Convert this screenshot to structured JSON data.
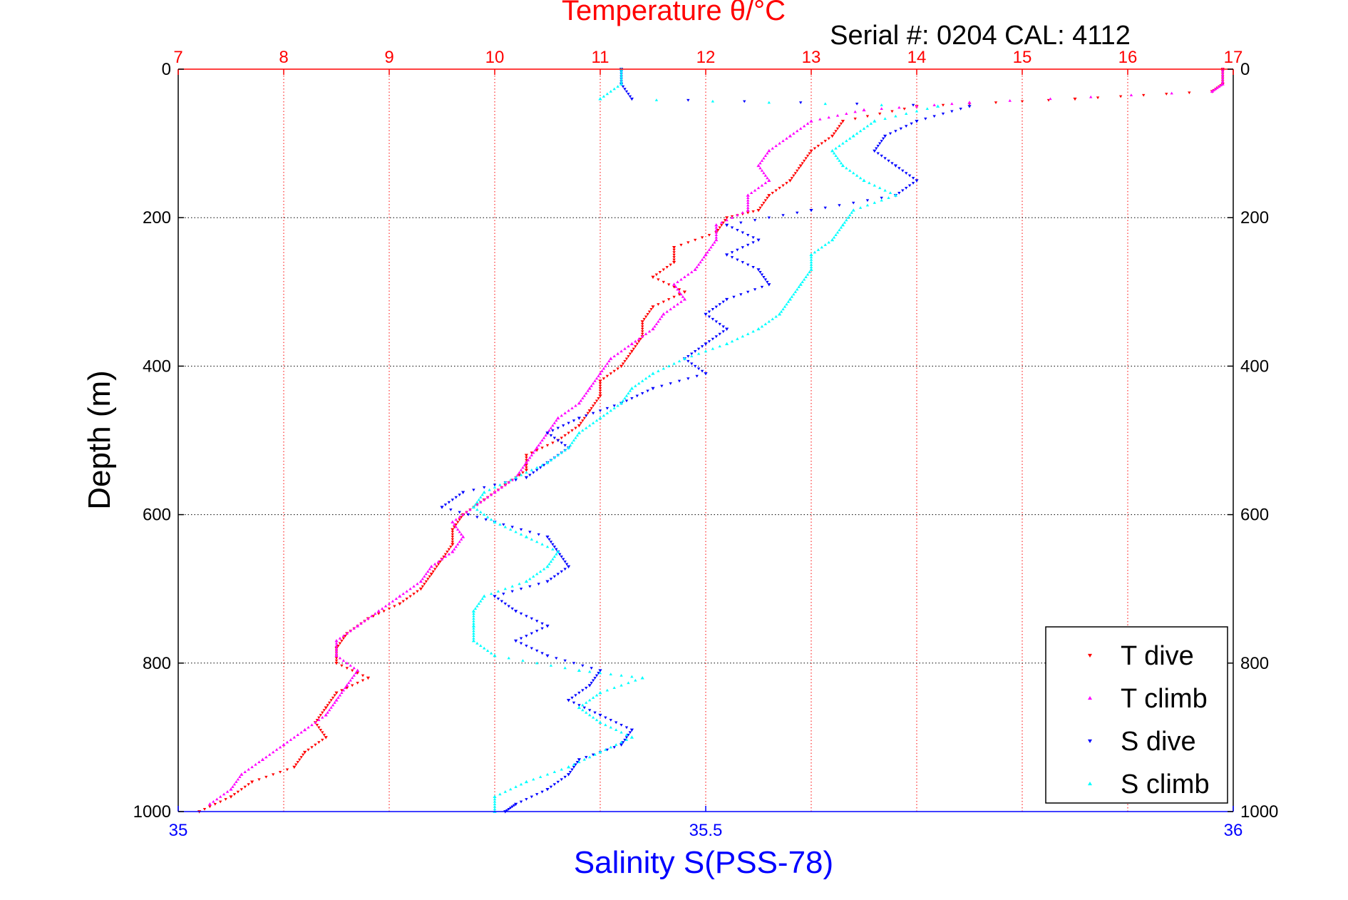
{
  "chart_data": {
    "type": "scatter",
    "title": "Temperature θ/°C",
    "subtitle": "Serial #: 0204  CAL: 4112",
    "ylabel": "Depth (m)",
    "xlabel_bottom": "Salinity S(PSS-78)",
    "ylim": [
      1000,
      0
    ],
    "yticks": [
      0,
      200,
      400,
      600,
      800,
      1000
    ],
    "x_top": {
      "label": "Temperature θ/°C",
      "lim": [
        7,
        17
      ],
      "ticks": [
        7,
        8,
        9,
        10,
        11,
        12,
        13,
        14,
        15,
        16,
        17
      ]
    },
    "x_bottom": {
      "label": "Salinity S(PSS-78)",
      "lim": [
        35,
        36
      ],
      "ticks": [
        35,
        35.5,
        36
      ]
    },
    "grid": true,
    "legend_position": "bottom-right",
    "series": [
      {
        "name": "T dive",
        "axis": "top",
        "color": "#ff0000",
        "marker": "triangle-down",
        "points": [
          [
            16.9,
            0
          ],
          [
            16.9,
            20
          ],
          [
            16.8,
            30
          ],
          [
            15.5,
            40
          ],
          [
            14,
            50
          ],
          [
            13.3,
            70
          ],
          [
            13.2,
            90
          ],
          [
            13,
            110
          ],
          [
            12.9,
            130
          ],
          [
            12.8,
            150
          ],
          [
            12.6,
            170
          ],
          [
            12.5,
            190
          ],
          [
            12.2,
            200
          ],
          [
            12.1,
            220
          ],
          [
            11.7,
            240
          ],
          [
            11.7,
            260
          ],
          [
            11.5,
            280
          ],
          [
            11.8,
            300
          ],
          [
            11.5,
            320
          ],
          [
            11.4,
            340
          ],
          [
            11.4,
            360
          ],
          [
            11.3,
            380
          ],
          [
            11.2,
            400
          ],
          [
            11,
            420
          ],
          [
            11,
            440
          ],
          [
            10.9,
            460
          ],
          [
            10.8,
            480
          ],
          [
            10.6,
            500
          ],
          [
            10.3,
            520
          ],
          [
            10.3,
            540
          ],
          [
            10.1,
            560
          ],
          [
            9.9,
            580
          ],
          [
            9.7,
            600
          ],
          [
            9.6,
            620
          ],
          [
            9.6,
            640
          ],
          [
            9.5,
            660
          ],
          [
            9.4,
            680
          ],
          [
            9.3,
            700
          ],
          [
            9.1,
            720
          ],
          [
            8.8,
            740
          ],
          [
            8.6,
            760
          ],
          [
            8.5,
            780
          ],
          [
            8.5,
            800
          ],
          [
            8.8,
            820
          ],
          [
            8.5,
            840
          ],
          [
            8.4,
            860
          ],
          [
            8.3,
            880
          ],
          [
            8.4,
            900
          ],
          [
            8.2,
            920
          ],
          [
            8.1,
            940
          ],
          [
            7.7,
            960
          ],
          [
            7.5,
            980
          ],
          [
            7.2,
            1000
          ]
        ]
      },
      {
        "name": "T climb",
        "axis": "top",
        "color": "#ff00ff",
        "marker": "triangle-up",
        "points": [
          [
            16.9,
            0
          ],
          [
            16.9,
            20
          ],
          [
            16.8,
            30
          ],
          [
            14.5,
            45
          ],
          [
            13.5,
            55
          ],
          [
            13,
            70
          ],
          [
            12.8,
            90
          ],
          [
            12.6,
            110
          ],
          [
            12.5,
            130
          ],
          [
            12.6,
            150
          ],
          [
            12.4,
            170
          ],
          [
            12.4,
            190
          ],
          [
            12.1,
            210
          ],
          [
            12.1,
            230
          ],
          [
            12,
            250
          ],
          [
            11.9,
            270
          ],
          [
            11.7,
            290
          ],
          [
            11.8,
            310
          ],
          [
            11.6,
            330
          ],
          [
            11.5,
            350
          ],
          [
            11.3,
            370
          ],
          [
            11.1,
            390
          ],
          [
            11,
            410
          ],
          [
            10.9,
            430
          ],
          [
            10.8,
            450
          ],
          [
            10.6,
            470
          ],
          [
            10.5,
            490
          ],
          [
            10.4,
            510
          ],
          [
            10.3,
            530
          ],
          [
            10.2,
            550
          ],
          [
            10,
            570
          ],
          [
            9.8,
            590
          ],
          [
            9.6,
            610
          ],
          [
            9.7,
            630
          ],
          [
            9.6,
            650
          ],
          [
            9.4,
            670
          ],
          [
            9.3,
            690
          ],
          [
            9.1,
            710
          ],
          [
            8.9,
            730
          ],
          [
            8.7,
            750
          ],
          [
            8.5,
            770
          ],
          [
            8.5,
            790
          ],
          [
            8.7,
            810
          ],
          [
            8.6,
            830
          ],
          [
            8.5,
            850
          ],
          [
            8.4,
            870
          ],
          [
            8.2,
            890
          ],
          [
            8,
            910
          ],
          [
            7.8,
            930
          ],
          [
            7.6,
            950
          ],
          [
            7.5,
            970
          ],
          [
            7.3,
            990
          ]
        ]
      },
      {
        "name": "S dive",
        "axis": "bottom",
        "color": "#0000ff",
        "marker": "triangle-down",
        "points": [
          [
            35.42,
            0
          ],
          [
            35.42,
            20
          ],
          [
            35.43,
            40
          ],
          [
            35.75,
            50
          ],
          [
            35.7,
            70
          ],
          [
            35.67,
            90
          ],
          [
            35.66,
            110
          ],
          [
            35.68,
            130
          ],
          [
            35.7,
            150
          ],
          [
            35.68,
            170
          ],
          [
            35.6,
            190
          ],
          [
            35.52,
            210
          ],
          [
            35.55,
            230
          ],
          [
            35.52,
            250
          ],
          [
            35.55,
            270
          ],
          [
            35.56,
            290
          ],
          [
            35.52,
            310
          ],
          [
            35.5,
            330
          ],
          [
            35.52,
            350
          ],
          [
            35.5,
            370
          ],
          [
            35.48,
            390
          ],
          [
            35.5,
            410
          ],
          [
            35.45,
            430
          ],
          [
            35.42,
            450
          ],
          [
            35.38,
            470
          ],
          [
            35.35,
            490
          ],
          [
            35.37,
            510
          ],
          [
            35.35,
            530
          ],
          [
            35.33,
            550
          ],
          [
            35.27,
            570
          ],
          [
            35.25,
            590
          ],
          [
            35.3,
            610
          ],
          [
            35.35,
            630
          ],
          [
            35.36,
            650
          ],
          [
            35.37,
            670
          ],
          [
            35.35,
            690
          ],
          [
            35.3,
            710
          ],
          [
            35.32,
            730
          ],
          [
            35.35,
            750
          ],
          [
            35.32,
            770
          ],
          [
            35.35,
            790
          ],
          [
            35.4,
            810
          ],
          [
            35.39,
            830
          ],
          [
            35.37,
            850
          ],
          [
            35.4,
            870
          ],
          [
            35.43,
            890
          ],
          [
            35.42,
            910
          ],
          [
            35.38,
            930
          ],
          [
            35.37,
            950
          ],
          [
            35.35,
            970
          ],
          [
            35.32,
            990
          ],
          [
            35.31,
            1000
          ]
        ]
      },
      {
        "name": "S climb",
        "axis": "bottom",
        "color": "#00ffff",
        "marker": "triangle-up",
        "points": [
          [
            35.42,
            0
          ],
          [
            35.42,
            20
          ],
          [
            35.4,
            40
          ],
          [
            35.72,
            50
          ],
          [
            35.66,
            70
          ],
          [
            35.64,
            90
          ],
          [
            35.62,
            110
          ],
          [
            35.63,
            130
          ],
          [
            35.65,
            150
          ],
          [
            35.68,
            170
          ],
          [
            35.64,
            190
          ],
          [
            35.63,
            210
          ],
          [
            35.62,
            230
          ],
          [
            35.6,
            250
          ],
          [
            35.6,
            270
          ],
          [
            35.59,
            290
          ],
          [
            35.58,
            310
          ],
          [
            35.57,
            330
          ],
          [
            35.55,
            350
          ],
          [
            35.52,
            370
          ],
          [
            35.48,
            390
          ],
          [
            35.45,
            410
          ],
          [
            35.43,
            430
          ],
          [
            35.42,
            450
          ],
          [
            35.4,
            470
          ],
          [
            35.38,
            490
          ],
          [
            35.37,
            510
          ],
          [
            35.35,
            530
          ],
          [
            35.32,
            550
          ],
          [
            35.29,
            570
          ],
          [
            35.28,
            590
          ],
          [
            35.3,
            610
          ],
          [
            35.33,
            630
          ],
          [
            35.36,
            650
          ],
          [
            35.35,
            670
          ],
          [
            35.33,
            690
          ],
          [
            35.29,
            710
          ],
          [
            35.28,
            730
          ],
          [
            35.28,
            750
          ],
          [
            35.28,
            770
          ],
          [
            35.3,
            790
          ],
          [
            35.38,
            810
          ],
          [
            35.44,
            820
          ],
          [
            35.4,
            840
          ],
          [
            35.38,
            860
          ],
          [
            35.4,
            880
          ],
          [
            35.43,
            900
          ],
          [
            35.4,
            920
          ],
          [
            35.37,
            940
          ],
          [
            35.33,
            960
          ],
          [
            35.3,
            980
          ],
          [
            35.3,
            1000
          ]
        ]
      }
    ]
  }
}
